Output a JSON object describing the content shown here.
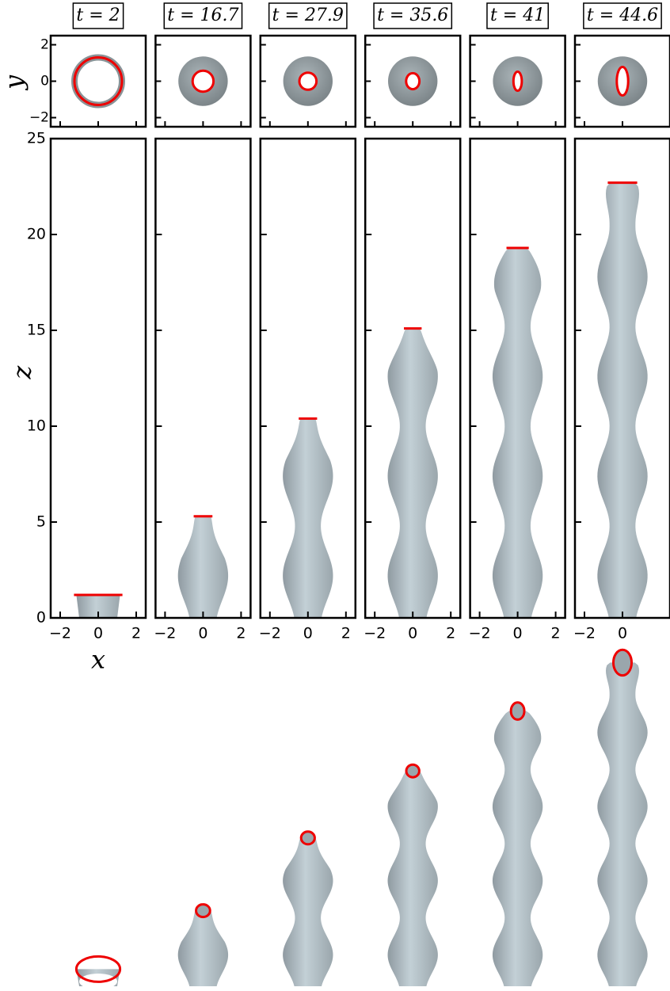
{
  "chart_data": [
    {
      "type": "jet",
      "title": "t = 2",
      "top_z": 1.2,
      "xlim": [
        -2.5,
        2.5
      ],
      "xticks": [
        {
          "value": -2,
          "label": "−2"
        },
        0,
        2
      ],
      "ylim": [
        0,
        25
      ],
      "yticks": [
        0,
        5,
        10,
        15,
        20,
        25
      ],
      "xlabel": "x",
      "ylabel": "z",
      "inset": {
        "ylabel": "y",
        "ylim": [
          -2.5,
          2.5
        ],
        "yticks": [
          {
            "value": -2,
            "label": "−2"
          },
          0,
          2
        ]
      }
    },
    {
      "type": "jet",
      "title": "t = 16.7",
      "top_z": 5.3,
      "xlim": [
        -2.5,
        2.5
      ],
      "xticks": [
        {
          "value": -2,
          "label": "−2"
        },
        0,
        2
      ]
    },
    {
      "type": "jet",
      "title": "t = 27.9",
      "top_z": 10.4,
      "xlim": [
        -2.5,
        2.5
      ],
      "xticks": [
        {
          "value": -2,
          "label": "−2"
        },
        0,
        2
      ]
    },
    {
      "type": "jet",
      "title": "t = 35.6",
      "top_z": 15.1,
      "xlim": [
        -2.5,
        2.5
      ],
      "xticks": [
        {
          "value": -2,
          "label": "−2"
        },
        0,
        2
      ]
    },
    {
      "type": "jet",
      "title": "t = 41",
      "top_z": 19.3,
      "xlim": [
        -2.5,
        2.5
      ],
      "xticks": [
        {
          "value": -2,
          "label": "−2"
        },
        0,
        2
      ]
    },
    {
      "type": "jet",
      "title": "t = 44.6",
      "top_z": 22.7,
      "xlim": [
        -2.5,
        2.5
      ],
      "xticks": [
        {
          "value": -2,
          "label": "−2"
        },
        0
      ]
    }
  ]
}
